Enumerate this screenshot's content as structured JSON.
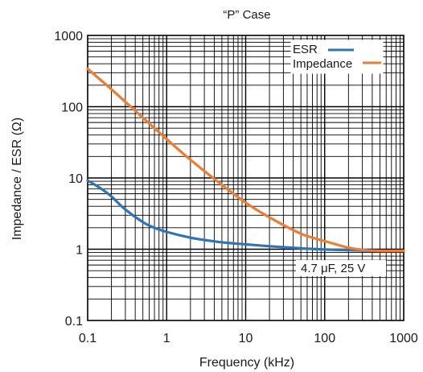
{
  "chart_data": {
    "type": "line",
    "title": "“P” Case",
    "xlabel": "Frequency (kHz)",
    "ylabel": "Impedance / ESR (Ω)",
    "xscale": "log",
    "yscale": "log",
    "xlim": [
      0.1,
      1000
    ],
    "ylim": [
      0.1,
      1000
    ],
    "grid": true,
    "legend_position": "top-right",
    "x_tick_labels": [
      "0.1",
      "1",
      "10",
      "100",
      "1000"
    ],
    "y_tick_labels": [
      "0.1",
      "1",
      "10",
      "100",
      "1000"
    ],
    "annotation": "4.7 μF, 25 V",
    "series": [
      {
        "name": "ESR",
        "color": "#2e75b6",
        "x": [
          0.1,
          0.15,
          0.2,
          0.3,
          0.5,
          0.7,
          1,
          2,
          3,
          5,
          10,
          20,
          50,
          100,
          200,
          500,
          1000
        ],
        "y": [
          9.2,
          7.0,
          5.5,
          3.6,
          2.4,
          2.0,
          1.75,
          1.45,
          1.35,
          1.25,
          1.17,
          1.1,
          1.03,
          0.99,
          0.97,
          0.95,
          0.95
        ]
      },
      {
        "name": "Impedance",
        "color": "#ed7d31",
        "x": [
          0.1,
          0.2,
          0.5,
          1,
          2,
          5,
          10,
          20,
          50,
          100,
          200,
          300,
          500,
          1000
        ],
        "y": [
          340,
          175,
          70,
          35,
          18,
          8.0,
          4.5,
          2.8,
          1.65,
          1.3,
          1.05,
          0.98,
          0.95,
          0.95
        ]
      }
    ]
  }
}
